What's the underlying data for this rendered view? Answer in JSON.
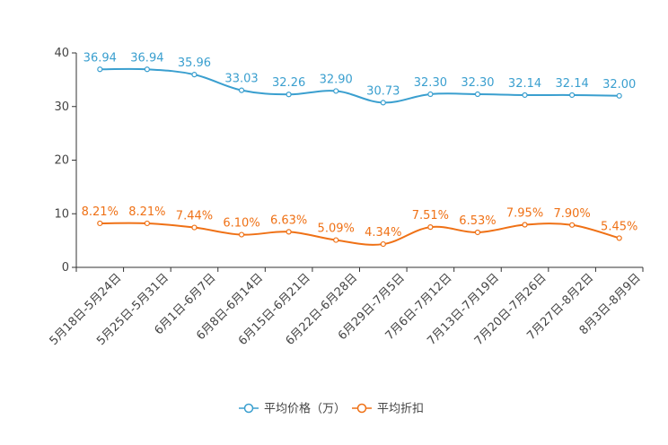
{
  "chart_data": {
    "type": "line",
    "title": "",
    "xlabel": "",
    "ylabel": "",
    "ylim": [
      0,
      40
    ],
    "yticks": [
      0,
      10,
      20,
      30,
      40
    ],
    "grid": false,
    "legend_position": "bottom-center",
    "categories": [
      "5月18日-5月24日",
      "5月25日-5月31日",
      "6月1日-6月7日",
      "6月8日-6月14日",
      "6月15日-6月21日",
      "6月22日-6月28日",
      "6月29日-7月5日",
      "7月6日-7月12日",
      "7月13日-7月19日",
      "7月20日-7月26日",
      "7月27日-8月2日",
      "8月3日-8月9日"
    ],
    "series": [
      {
        "name": "平均价格（万）",
        "color": "#3a9fcf",
        "values": [
          36.94,
          36.94,
          35.96,
          33.03,
          32.26,
          32.9,
          30.73,
          32.3,
          32.3,
          32.14,
          32.14,
          32.0
        ],
        "labels": [
          "36.94",
          "36.94",
          "35.96",
          "33.03",
          "32.26",
          "32.90",
          "30.73",
          "32.30",
          "32.30",
          "32.14",
          "32.14",
          "32.00"
        ]
      },
      {
        "name": "平均折扣",
        "color": "#ef7116",
        "values": [
          8.21,
          8.21,
          7.44,
          6.1,
          6.63,
          5.09,
          4.34,
          7.51,
          6.53,
          7.95,
          7.9,
          5.45
        ],
        "labels": [
          "8.21%",
          "8.21%",
          "7.44%",
          "6.10%",
          "6.63%",
          "5.09%",
          "4.34%",
          "7.51%",
          "6.53%",
          "7.95%",
          "7.90%",
          "5.45%"
        ]
      }
    ]
  }
}
